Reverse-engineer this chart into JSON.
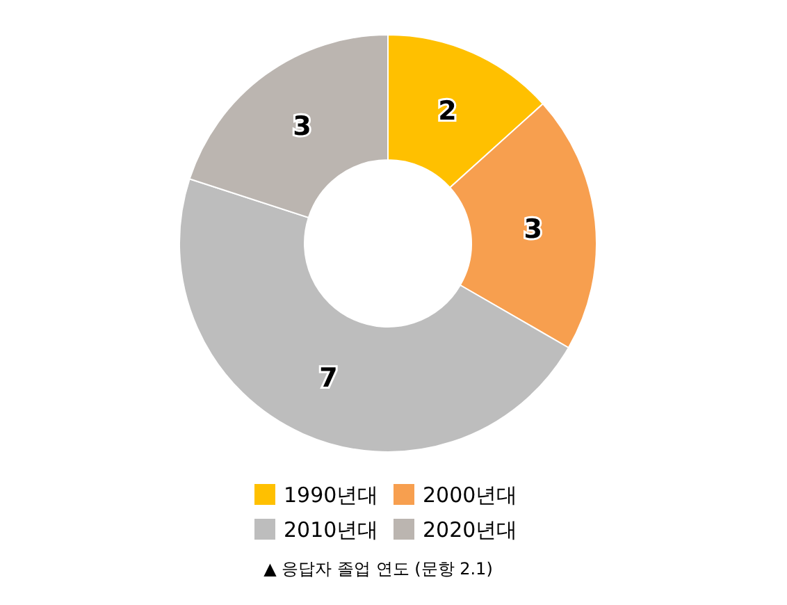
{
  "chart_data": {
    "type": "donut",
    "categories": [
      "1990년대",
      "2000년대",
      "2010년대",
      "2020년대"
    ],
    "values": [
      2,
      3,
      7,
      3
    ],
    "colors": [
      "#ffc000",
      "#f79f4f",
      "#bdbdbd",
      "#bbb5b0"
    ],
    "data_labels": true,
    "legend": "bottom",
    "annotations": [
      "▲ 응답자 졸업 연도 (문항 2.1)"
    ]
  }
}
